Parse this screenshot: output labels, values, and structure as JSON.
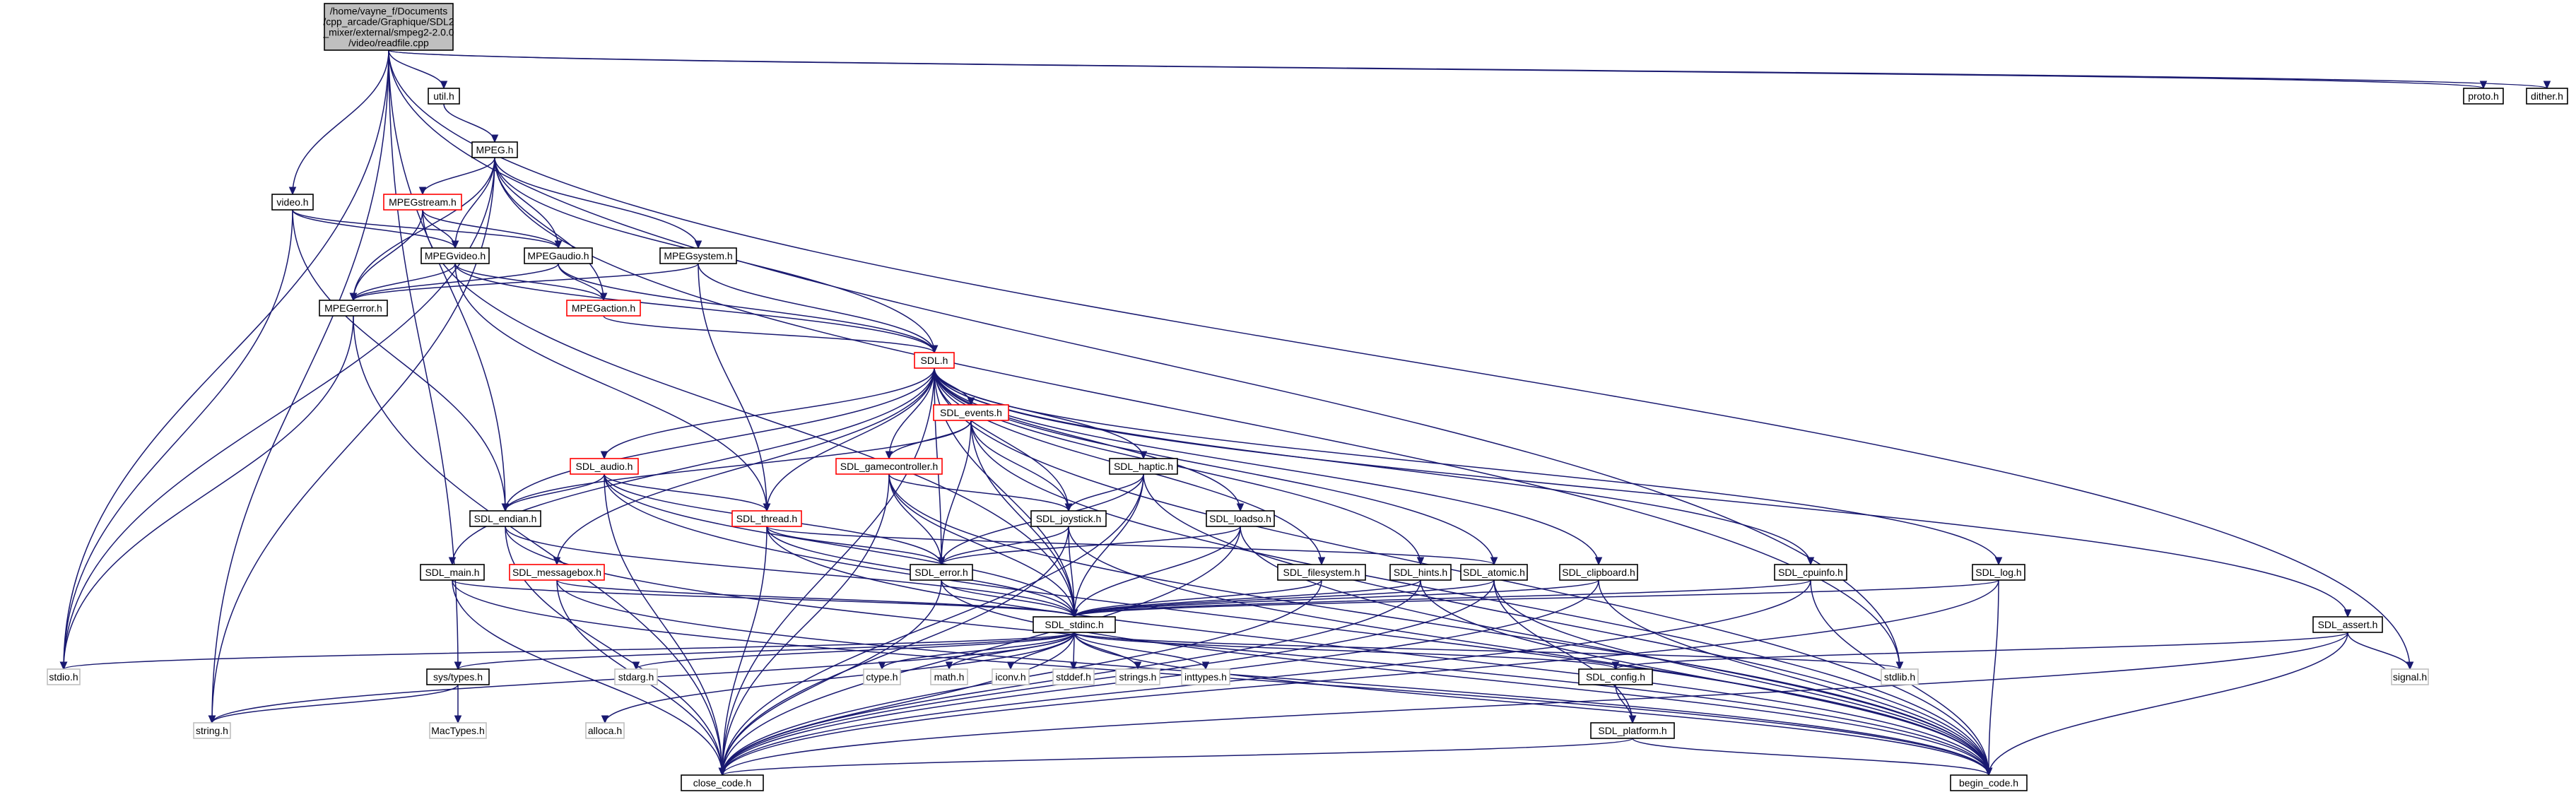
{
  "colors": {
    "edge": "#191970",
    "box_border": "#000000",
    "box_border_red": "#ff0000",
    "box_border_gray": "#bfbfbf",
    "root_fill": "#bfbfbf",
    "background": "#ffffff"
  },
  "nodes": [
    {
      "id": "root",
      "lines": [
        "/home/vayne_f/Documents",
        "/cpp_arcade/Graphique/SDL2",
        "_mixer/external/smpeg2-2.0.0",
        "/video/readfile.cpp"
      ],
      "style": "root"
    },
    {
      "id": "util",
      "lines": [
        "util.h"
      ],
      "style": "normal"
    },
    {
      "id": "proto",
      "lines": [
        "proto.h"
      ],
      "style": "normal"
    },
    {
      "id": "dither",
      "lines": [
        "dither.h"
      ],
      "style": "normal"
    },
    {
      "id": "MPEG",
      "lines": [
        "MPEG.h"
      ],
      "style": "normal"
    },
    {
      "id": "video",
      "lines": [
        "video.h"
      ],
      "style": "normal"
    },
    {
      "id": "MPEGstream",
      "lines": [
        "MPEGstream.h"
      ],
      "style": "red"
    },
    {
      "id": "MPEGvideo",
      "lines": [
        "MPEGvideo.h"
      ],
      "style": "normal"
    },
    {
      "id": "MPEGaudio",
      "lines": [
        "MPEGaudio.h"
      ],
      "style": "normal"
    },
    {
      "id": "MPEGsystem",
      "lines": [
        "MPEGsystem.h"
      ],
      "style": "normal"
    },
    {
      "id": "MPEGerror",
      "lines": [
        "MPEGerror.h"
      ],
      "style": "normal"
    },
    {
      "id": "MPEGaction",
      "lines": [
        "MPEGaction.h"
      ],
      "style": "red"
    },
    {
      "id": "SDL",
      "lines": [
        "SDL.h"
      ],
      "style": "red"
    },
    {
      "id": "SDL_events",
      "lines": [
        "SDL_events.h"
      ],
      "style": "red"
    },
    {
      "id": "SDL_gamecontroller",
      "lines": [
        "SDL_gamecontroller.h"
      ],
      "style": "red"
    },
    {
      "id": "SDL_haptic",
      "lines": [
        "SDL_haptic.h"
      ],
      "style": "normal"
    },
    {
      "id": "SDL_audio",
      "lines": [
        "SDL_audio.h"
      ],
      "style": "red"
    },
    {
      "id": "SDL_endian",
      "lines": [
        "SDL_endian.h"
      ],
      "style": "normal"
    },
    {
      "id": "SDL_thread",
      "lines": [
        "SDL_thread.h"
      ],
      "style": "red"
    },
    {
      "id": "SDL_joystick",
      "lines": [
        "SDL_joystick.h"
      ],
      "style": "normal"
    },
    {
      "id": "SDL_loadso",
      "lines": [
        "SDL_loadso.h"
      ],
      "style": "normal"
    },
    {
      "id": "SDL_main",
      "lines": [
        "SDL_main.h"
      ],
      "style": "normal"
    },
    {
      "id": "SDL_messagebox",
      "lines": [
        "SDL_messagebox.h"
      ],
      "style": "red"
    },
    {
      "id": "SDL_error",
      "lines": [
        "SDL_error.h"
      ],
      "style": "normal"
    },
    {
      "id": "SDL_filesystem",
      "lines": [
        "SDL_filesystem.h"
      ],
      "style": "normal"
    },
    {
      "id": "SDL_hints",
      "lines": [
        "SDL_hints.h"
      ],
      "style": "normal"
    },
    {
      "id": "SDL_atomic",
      "lines": [
        "SDL_atomic.h"
      ],
      "style": "normal"
    },
    {
      "id": "SDL_clipboard",
      "lines": [
        "SDL_clipboard.h"
      ],
      "style": "normal"
    },
    {
      "id": "SDL_cpuinfo",
      "lines": [
        "SDL_cpuinfo.h"
      ],
      "style": "normal"
    },
    {
      "id": "SDL_log",
      "lines": [
        "SDL_log.h"
      ],
      "style": "normal"
    },
    {
      "id": "SDL_stdinc",
      "lines": [
        "SDL_stdinc.h"
      ],
      "style": "normal"
    },
    {
      "id": "SDL_assert",
      "lines": [
        "SDL_assert.h"
      ],
      "style": "normal"
    },
    {
      "id": "stdio",
      "lines": [
        "stdio.h"
      ],
      "style": "gray"
    },
    {
      "id": "sys_types",
      "lines": [
        "sys/types.h"
      ],
      "style": "normal"
    },
    {
      "id": "stdarg",
      "lines": [
        "stdarg.h"
      ],
      "style": "gray"
    },
    {
      "id": "ctype",
      "lines": [
        "ctype.h"
      ],
      "style": "gray"
    },
    {
      "id": "math",
      "lines": [
        "math.h"
      ],
      "style": "gray"
    },
    {
      "id": "iconv",
      "lines": [
        "iconv.h"
      ],
      "style": "gray"
    },
    {
      "id": "stddef",
      "lines": [
        "stddef.h"
      ],
      "style": "gray"
    },
    {
      "id": "strings",
      "lines": [
        "strings.h"
      ],
      "style": "gray"
    },
    {
      "id": "inttypes",
      "lines": [
        "inttypes.h"
      ],
      "style": "gray"
    },
    {
      "id": "SDL_config",
      "lines": [
        "SDL_config.h"
      ],
      "style": "normal"
    },
    {
      "id": "stdlib",
      "lines": [
        "stdlib.h"
      ],
      "style": "gray"
    },
    {
      "id": "signal",
      "lines": [
        "signal.h"
      ],
      "style": "gray"
    },
    {
      "id": "string",
      "lines": [
        "string.h"
      ],
      "style": "gray"
    },
    {
      "id": "MacTypes",
      "lines": [
        "MacTypes.h"
      ],
      "style": "gray"
    },
    {
      "id": "alloca",
      "lines": [
        "alloca.h"
      ],
      "style": "gray"
    },
    {
      "id": "SDL_platform",
      "lines": [
        "SDL_platform.h"
      ],
      "style": "normal"
    },
    {
      "id": "close_code",
      "lines": [
        "close_code.h"
      ],
      "style": "normal"
    },
    {
      "id": "begin_code",
      "lines": [
        "begin_code.h"
      ],
      "style": "normal"
    }
  ],
  "edges": [
    [
      "root",
      "util"
    ],
    [
      "root",
      "proto"
    ],
    [
      "root",
      "dither"
    ],
    [
      "root",
      "video"
    ],
    [
      "root",
      "SDL_endian"
    ],
    [
      "root",
      "sys_types"
    ],
    [
      "root",
      "stdio"
    ],
    [
      "root",
      "string"
    ],
    [
      "root",
      "stdlib"
    ],
    [
      "root",
      "signal"
    ],
    [
      "util",
      "MPEG"
    ],
    [
      "MPEG",
      "MPEGstream"
    ],
    [
      "MPEG",
      "MPEGvideo"
    ],
    [
      "MPEG",
      "MPEGaudio"
    ],
    [
      "MPEG",
      "MPEGsystem"
    ],
    [
      "MPEG",
      "MPEGerror"
    ],
    [
      "MPEG",
      "MPEGaction"
    ],
    [
      "MPEG",
      "SDL"
    ],
    [
      "MPEG",
      "stdio"
    ],
    [
      "MPEG",
      "string"
    ],
    [
      "MPEG",
      "stdlib"
    ],
    [
      "video",
      "MPEGvideo"
    ],
    [
      "video",
      "MPEGaudio"
    ],
    [
      "video",
      "SDL_endian"
    ],
    [
      "video",
      "stdio"
    ],
    [
      "MPEGstream",
      "MPEGvideo"
    ],
    [
      "MPEGstream",
      "MPEGaudio"
    ],
    [
      "MPEGstream",
      "MPEGerror"
    ],
    [
      "MPEGstream",
      "SDL_stdinc"
    ],
    [
      "MPEGvideo",
      "MPEGerror"
    ],
    [
      "MPEGvideo",
      "MPEGaction"
    ],
    [
      "MPEGvideo",
      "SDL"
    ],
    [
      "MPEGvideo",
      "SDL_thread"
    ],
    [
      "MPEGaudio",
      "MPEGerror"
    ],
    [
      "MPEGaudio",
      "MPEGaction"
    ],
    [
      "MPEGaudio",
      "SDL"
    ],
    [
      "MPEGsystem",
      "MPEGerror"
    ],
    [
      "MPEGsystem",
      "SDL"
    ],
    [
      "MPEGsystem",
      "SDL_thread"
    ],
    [
      "MPEGerror",
      "stdio"
    ],
    [
      "MPEGerror",
      "close_code"
    ],
    [
      "MPEGaction",
      "SDL"
    ],
    [
      "SDL",
      "SDL_events"
    ],
    [
      "SDL",
      "SDL_gamecontroller"
    ],
    [
      "SDL",
      "SDL_haptic"
    ],
    [
      "SDL",
      "SDL_audio"
    ],
    [
      "SDL",
      "SDL_endian"
    ],
    [
      "SDL",
      "SDL_thread"
    ],
    [
      "SDL",
      "SDL_joystick"
    ],
    [
      "SDL",
      "SDL_loadso"
    ],
    [
      "SDL",
      "SDL_main"
    ],
    [
      "SDL",
      "SDL_messagebox"
    ],
    [
      "SDL",
      "SDL_error"
    ],
    [
      "SDL",
      "SDL_filesystem"
    ],
    [
      "SDL",
      "SDL_hints"
    ],
    [
      "SDL",
      "SDL_atomic"
    ],
    [
      "SDL",
      "SDL_clipboard"
    ],
    [
      "SDL",
      "SDL_cpuinfo"
    ],
    [
      "SDL",
      "SDL_log"
    ],
    [
      "SDL",
      "SDL_stdinc"
    ],
    [
      "SDL",
      "SDL_assert"
    ],
    [
      "SDL",
      "close_code"
    ],
    [
      "SDL",
      "begin_code"
    ],
    [
      "SDL_events",
      "SDL_gamecontroller"
    ],
    [
      "SDL_events",
      "SDL_joystick"
    ],
    [
      "SDL_events",
      "SDL_error"
    ],
    [
      "SDL_events",
      "SDL_stdinc"
    ],
    [
      "SDL_events",
      "SDL_endian"
    ],
    [
      "SDL_events",
      "begin_code"
    ],
    [
      "SDL_gamecontroller",
      "SDL_joystick"
    ],
    [
      "SDL_gamecontroller",
      "SDL_error"
    ],
    [
      "SDL_gamecontroller",
      "SDL_stdinc"
    ],
    [
      "SDL_gamecontroller",
      "close_code"
    ],
    [
      "SDL_gamecontroller",
      "begin_code"
    ],
    [
      "SDL_haptic",
      "SDL_joystick"
    ],
    [
      "SDL_haptic",
      "SDL_error"
    ],
    [
      "SDL_haptic",
      "SDL_stdinc"
    ],
    [
      "SDL_haptic",
      "close_code"
    ],
    [
      "SDL_haptic",
      "begin_code"
    ],
    [
      "SDL_audio",
      "SDL_endian"
    ],
    [
      "SDL_audio",
      "SDL_thread"
    ],
    [
      "SDL_audio",
      "SDL_error"
    ],
    [
      "SDL_audio",
      "SDL_stdinc"
    ],
    [
      "SDL_audio",
      "close_code"
    ],
    [
      "SDL_audio",
      "begin_code"
    ],
    [
      "SDL_endian",
      "SDL_stdinc"
    ],
    [
      "SDL_endian",
      "close_code"
    ],
    [
      "SDL_endian",
      "begin_code"
    ],
    [
      "SDL_thread",
      "SDL_error"
    ],
    [
      "SDL_thread",
      "SDL_stdinc"
    ],
    [
      "SDL_thread",
      "SDL_atomic"
    ],
    [
      "SDL_thread",
      "close_code"
    ],
    [
      "SDL_thread",
      "begin_code"
    ],
    [
      "SDL_joystick",
      "SDL_error"
    ],
    [
      "SDL_joystick",
      "SDL_stdinc"
    ],
    [
      "SDL_joystick",
      "close_code"
    ],
    [
      "SDL_joystick",
      "begin_code"
    ],
    [
      "SDL_loadso",
      "SDL_error"
    ],
    [
      "SDL_loadso",
      "SDL_stdinc"
    ],
    [
      "SDL_loadso",
      "close_code"
    ],
    [
      "SDL_loadso",
      "begin_code"
    ],
    [
      "SDL_main",
      "SDL_stdinc"
    ],
    [
      "SDL_main",
      "close_code"
    ],
    [
      "SDL_main",
      "begin_code"
    ],
    [
      "SDL_messagebox",
      "SDL_stdinc"
    ],
    [
      "SDL_messagebox",
      "close_code"
    ],
    [
      "SDL_messagebox",
      "begin_code"
    ],
    [
      "SDL_error",
      "SDL_stdinc"
    ],
    [
      "SDL_error",
      "close_code"
    ],
    [
      "SDL_error",
      "begin_code"
    ],
    [
      "SDL_filesystem",
      "SDL_stdinc"
    ],
    [
      "SDL_filesystem",
      "close_code"
    ],
    [
      "SDL_hints",
      "SDL_stdinc"
    ],
    [
      "SDL_hints",
      "close_code"
    ],
    [
      "SDL_hints",
      "begin_code"
    ],
    [
      "SDL_atomic",
      "SDL_stdinc"
    ],
    [
      "SDL_atomic",
      "SDL_platform"
    ],
    [
      "SDL_atomic",
      "close_code"
    ],
    [
      "SDL_atomic",
      "begin_code"
    ],
    [
      "SDL_clipboard",
      "SDL_stdinc"
    ],
    [
      "SDL_clipboard",
      "close_code"
    ],
    [
      "SDL_clipboard",
      "begin_code"
    ],
    [
      "SDL_cpuinfo",
      "SDL_stdinc"
    ],
    [
      "SDL_cpuinfo",
      "close_code"
    ],
    [
      "SDL_cpuinfo",
      "begin_code"
    ],
    [
      "SDL_log",
      "SDL_stdinc"
    ],
    [
      "SDL_log",
      "close_code"
    ],
    [
      "SDL_log",
      "begin_code"
    ],
    [
      "SDL_assert",
      "SDL_config"
    ],
    [
      "SDL_assert",
      "signal"
    ],
    [
      "SDL_assert",
      "close_code"
    ],
    [
      "SDL_assert",
      "begin_code"
    ],
    [
      "SDL_stdinc",
      "stdio"
    ],
    [
      "SDL_stdinc",
      "sys_types"
    ],
    [
      "SDL_stdinc",
      "stdarg"
    ],
    [
      "SDL_stdinc",
      "ctype"
    ],
    [
      "SDL_stdinc",
      "math"
    ],
    [
      "SDL_stdinc",
      "iconv"
    ],
    [
      "SDL_stdinc",
      "stddef"
    ],
    [
      "SDL_stdinc",
      "strings"
    ],
    [
      "SDL_stdinc",
      "inttypes"
    ],
    [
      "SDL_stdinc",
      "SDL_config"
    ],
    [
      "SDL_stdinc",
      "stdlib"
    ],
    [
      "SDL_stdinc",
      "string"
    ],
    [
      "SDL_stdinc",
      "alloca"
    ],
    [
      "SDL_stdinc",
      "close_code"
    ],
    [
      "SDL_stdinc",
      "begin_code"
    ],
    [
      "sys_types",
      "string"
    ],
    [
      "sys_types",
      "MacTypes"
    ],
    [
      "SDL_config",
      "SDL_platform"
    ],
    [
      "SDL_platform",
      "close_code"
    ],
    [
      "SDL_platform",
      "begin_code"
    ]
  ]
}
